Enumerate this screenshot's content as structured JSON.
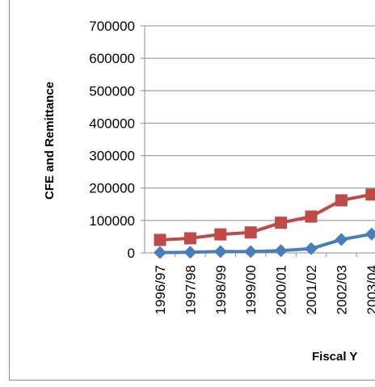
{
  "chart_data": {
    "type": "line",
    "title": "",
    "xlabel": "Fiscal Y",
    "ylabel": "CFE and Remittance",
    "ylim": [
      0,
      700000
    ],
    "y_ticks": [
      "0",
      "100000",
      "200000",
      "300000",
      "400000",
      "500000",
      "600000",
      "700000"
    ],
    "categories": [
      "1996/97",
      "1997/98",
      "1998/99",
      "1999/00",
      "2000/01",
      "2001/02",
      "2002/03",
      "2003/04"
    ],
    "grid": "horizontal",
    "series": [
      {
        "values": [
          1000,
          2000,
          4000,
          4000,
          7000,
          13000,
          41000,
          58000
        ],
        "color": "#4a7ebb",
        "marker": "diamond"
      },
      {
        "values": [
          40000,
          45000,
          57000,
          63000,
          93000,
          112000,
          162000,
          180000
        ],
        "color": "#be4b48",
        "marker": "square"
      }
    ]
  }
}
